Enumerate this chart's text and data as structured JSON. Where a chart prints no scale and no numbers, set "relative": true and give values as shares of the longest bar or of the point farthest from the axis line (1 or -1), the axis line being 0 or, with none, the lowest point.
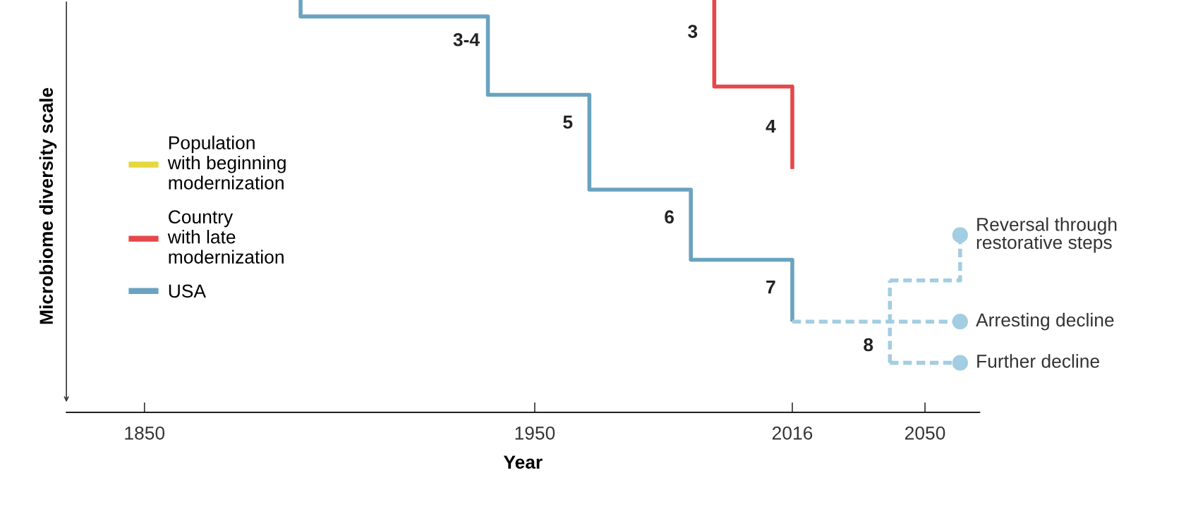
{
  "chart_data": {
    "type": "step",
    "relative": true,
    "xlabel": "Year",
    "ylabel": "Microbiome diversity scale",
    "xlim": [
      1830,
      2064
    ],
    "xticks": [
      1850,
      1950,
      2016,
      2050
    ],
    "tick_labels": "x",
    "grid": false,
    "legend": "left",
    "series": [
      {
        "name": "Population\nwith beginning\nmodernization",
        "color": "#e6d83c",
        "marker": "none",
        "line_style": "solid"
      },
      {
        "name": "Country\nwith late\nmodernization",
        "color": "#e5484b",
        "x": [
          1996,
          1996,
          2016,
          2016
        ],
        "values": [
          1.0,
          0.79,
          0.79,
          0.59
        ],
        "marker": "none",
        "line_style": "solid"
      },
      {
        "name": "USA",
        "color": "#6aa3bf",
        "x": [
          1890,
          1890,
          1938,
          1964,
          1990,
          2016
        ],
        "values": [
          1.0,
          0.96,
          0.77,
          0.54,
          0.37,
          0.22
        ],
        "marker": "none",
        "line_style": "solid"
      },
      {
        "color": "#a3cde2",
        "x": [
          2041,
          2041
        ],
        "values": [
          0.12,
          0.32
        ],
        "marker": "none",
        "line_style": "dashed"
      },
      {
        "name": "Reversal through\nrestorative steps",
        "color": "#a3cde2",
        "x": [
          2041,
          2059
        ],
        "values": [
          0.32,
          0.43
        ],
        "marker": "circle",
        "line_style": "dashed"
      },
      {
        "name": "Arresting decline",
        "color": "#a3cde2",
        "x": [
          2016,
          2059
        ],
        "values": [
          0.22,
          0.22
        ],
        "marker": "circle",
        "line_style": "dashed"
      },
      {
        "name": "Further decline",
        "color": "#a3cde2",
        "x": [
          2041,
          2059
        ],
        "values": [
          0.12,
          0.12
        ],
        "marker": "circle",
        "line_style": "dashed"
      }
    ],
    "annotations": [
      {
        "text": "3-4",
        "x": 1938,
        "y": 0.9
      },
      {
        "text": "5",
        "x": 1964,
        "y": 0.7
      },
      {
        "text": "6",
        "x": 1990,
        "y": 0.47
      },
      {
        "text": "7",
        "x": 2016,
        "y": 0.3
      },
      {
        "text": "8",
        "x": 2041,
        "y": 0.16
      },
      {
        "text": "3",
        "x": 1996,
        "y": 0.92
      },
      {
        "text": "4",
        "x": 2016,
        "y": 0.69
      }
    ]
  }
}
